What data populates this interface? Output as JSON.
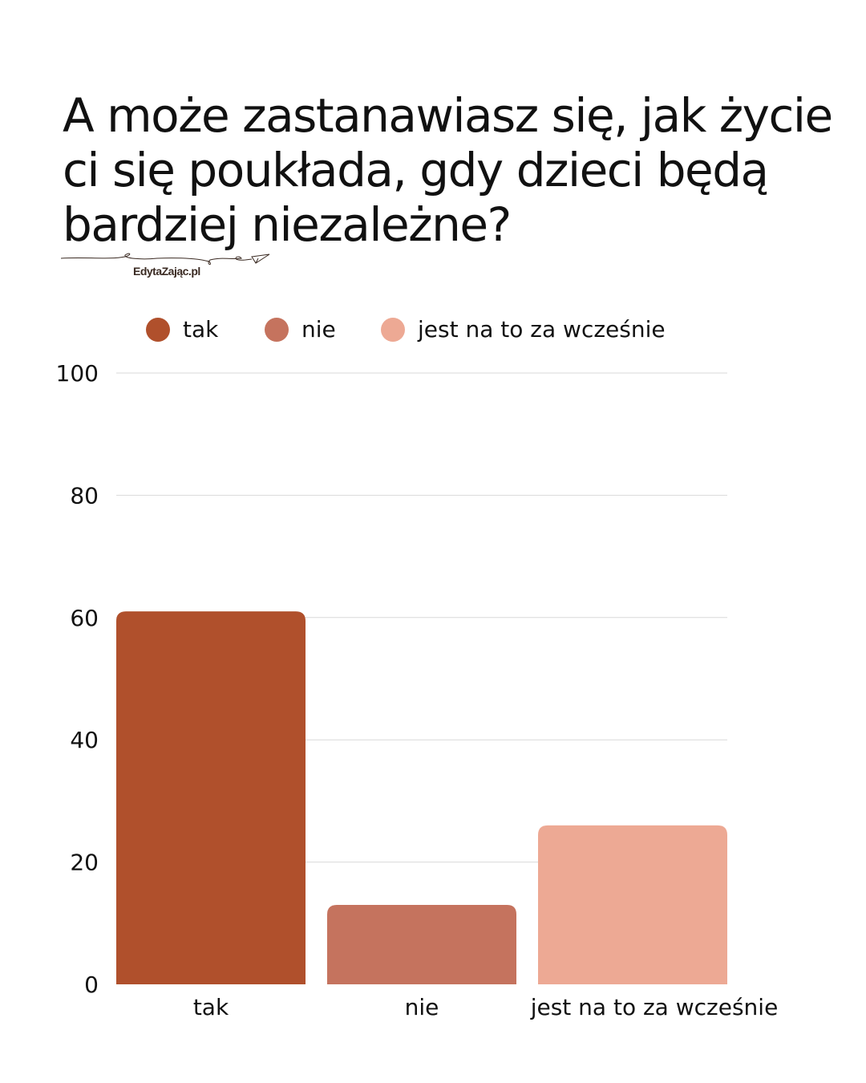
{
  "title": "A może zastanawiasz się, jak życie ci się poukłada, gdy dzieci będą bardziej niezależne?",
  "logo": {
    "text": "EdytaZając.pl"
  },
  "chart_data": {
    "type": "bar",
    "title": "A może zastanawiasz się, jak życie ci się poukłada, gdy dzieci będą bardziej niezależne?",
    "categories": [
      "tak",
      "nie",
      "jest na to za wcześnie"
    ],
    "values": [
      61,
      13,
      26
    ],
    "colors": [
      "#B0502C",
      "#C5735E",
      "#EDA994"
    ],
    "legend": {
      "position": "top",
      "entries": [
        "tak",
        "nie",
        "jest na to za wcześnie"
      ]
    },
    "ylim": [
      0,
      100
    ],
    "yticks": [
      0,
      20,
      40,
      60,
      80,
      100
    ],
    "grid": true,
    "xlabel": "",
    "ylabel": ""
  }
}
